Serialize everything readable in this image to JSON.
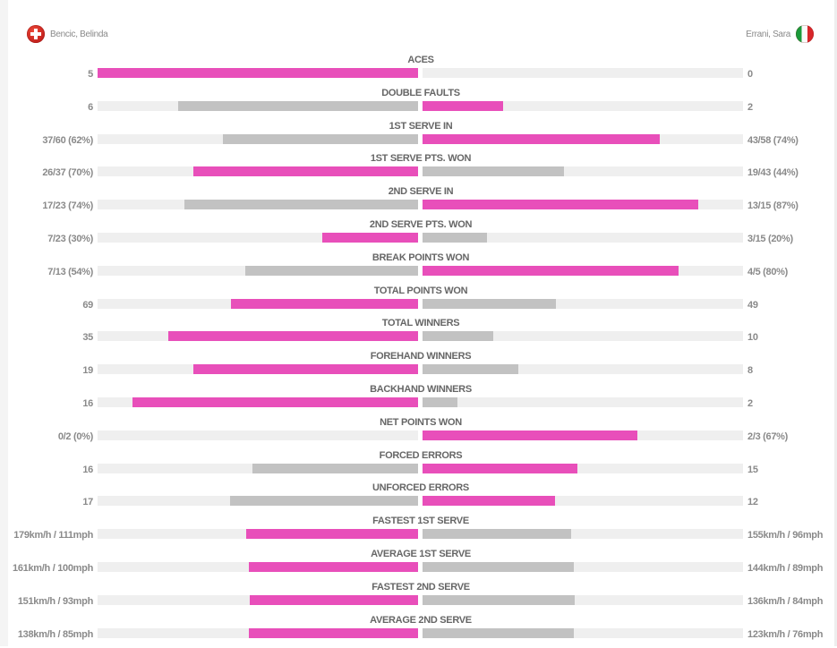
{
  "players": {
    "left": {
      "name": "Bencic, Belinda",
      "flag": "switzerland-flag"
    },
    "right": {
      "name": "Errani, Sara",
      "flag": "italy-flag"
    }
  },
  "colors": {
    "leader": "#e84fba",
    "other": "#c2c2c2",
    "track": "#efefef"
  },
  "stats": [
    {
      "label": "ACES",
      "left": "5",
      "right": "0",
      "lf": 1.0,
      "rf": 0,
      "lead": "left"
    },
    {
      "label": "DOUBLE FAULTS",
      "left": "6",
      "right": "2",
      "lf": 0.75,
      "rf": 0.25,
      "lead": "right"
    },
    {
      "label": "1ST SERVE IN",
      "left": "37/60 (62%)",
      "right": "43/58 (74%)",
      "lf": 0.61,
      "rf": 0.74,
      "lead": "right"
    },
    {
      "label": "1ST SERVE PTS. WON",
      "left": "26/37 (70%)",
      "right": "19/43 (44%)",
      "lf": 0.7,
      "rf": 0.44,
      "lead": "left"
    },
    {
      "label": "2ND SERVE IN",
      "left": "17/23 (74%)",
      "right": "13/15 (87%)",
      "lf": 0.73,
      "rf": 0.86,
      "lead": "right"
    },
    {
      "label": "2ND SERVE PTS. WON",
      "left": "7/23 (30%)",
      "right": "3/15 (20%)",
      "lf": 0.3,
      "rf": 0.2,
      "lead": "left"
    },
    {
      "label": "BREAK POINTS WON",
      "left": "7/13 (54%)",
      "right": "4/5 (80%)",
      "lf": 0.54,
      "rf": 0.8,
      "lead": "right"
    },
    {
      "label": "TOTAL POINTS WON",
      "left": "69",
      "right": "49",
      "lf": 0.585,
      "rf": 0.415,
      "lead": "left"
    },
    {
      "label": "TOTAL WINNERS",
      "left": "35",
      "right": "10",
      "lf": 0.78,
      "rf": 0.22,
      "lead": "left"
    },
    {
      "label": "FOREHAND WINNERS",
      "left": "19",
      "right": "8",
      "lf": 0.7,
      "rf": 0.3,
      "lead": "left"
    },
    {
      "label": "BACKHAND WINNERS",
      "left": "16",
      "right": "2",
      "lf": 0.89,
      "rf": 0.11,
      "lead": "left"
    },
    {
      "label": "NET POINTS WON",
      "left": "0/2 (0%)",
      "right": "2/3 (67%)",
      "lf": 0,
      "rf": 0.67,
      "lead": "right"
    },
    {
      "label": "FORCED ERRORS",
      "left": "16",
      "right": "15",
      "lf": 0.516,
      "rf": 0.484,
      "lead": "right"
    },
    {
      "label": "UNFORCED ERRORS",
      "left": "17",
      "right": "12",
      "lf": 0.586,
      "rf": 0.414,
      "lead": "right"
    },
    {
      "label": "FASTEST 1ST SERVE",
      "left": "179km/h / 111mph",
      "right": "155km/h / 96mph",
      "lf": 0.535,
      "rf": 0.465,
      "lead": "left"
    },
    {
      "label": "AVERAGE 1ST SERVE",
      "left": "161km/h / 100mph",
      "right": "144km/h / 89mph",
      "lf": 0.528,
      "rf": 0.472,
      "lead": "left"
    },
    {
      "label": "FASTEST 2ND SERVE",
      "left": "151km/h / 93mph",
      "right": "136km/h / 84mph",
      "lf": 0.526,
      "rf": 0.474,
      "lead": "left"
    },
    {
      "label": "AVERAGE 2ND SERVE",
      "left": "138km/h / 85mph",
      "right": "123km/h / 76mph",
      "lf": 0.528,
      "rf": 0.472,
      "lead": "left"
    }
  ]
}
